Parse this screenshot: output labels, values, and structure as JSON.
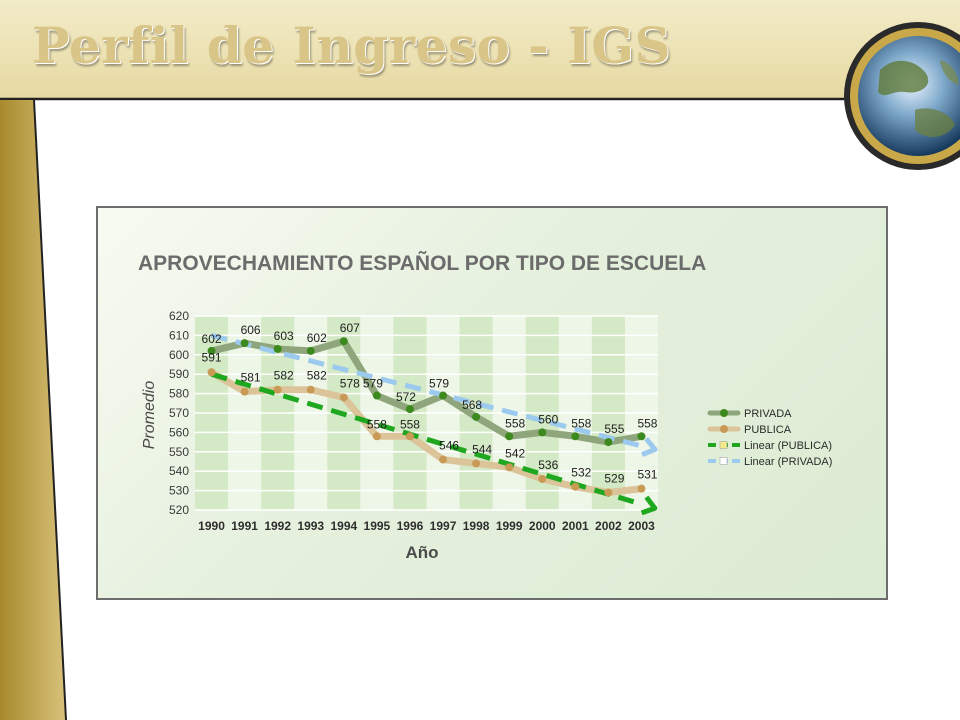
{
  "slide": {
    "title": "Perfil de Ingreso - IGS",
    "colors": {
      "title": "#d9c587",
      "band": "#ede3b6",
      "accent": "#c8a63a"
    }
  },
  "chart_data": {
    "type": "line",
    "title": "APROVECHAMIENTO ESPAÑOL POR TIPO DE ESCUELA",
    "xlabel": "Año",
    "ylabel": "Promedio",
    "x": [
      "1990",
      "1991",
      "1992",
      "1993",
      "1994",
      "1995",
      "1996",
      "1997",
      "1998",
      "1999",
      "2000",
      "2001",
      "2002",
      "2003"
    ],
    "ylim": [
      520,
      620
    ],
    "yticks": [
      "520",
      "530",
      "540",
      "550",
      "560",
      "570",
      "580",
      "590",
      "600",
      "610",
      "620"
    ],
    "grid": true,
    "legend_position": "right",
    "series": [
      {
        "name": "PRIVADA",
        "values": [
          602,
          606,
          603,
          602,
          607,
          579,
          572,
          579,
          568,
          558,
          560,
          558,
          555,
          558
        ],
        "color": "#3c8a1e",
        "line_color": "#8fa67c"
      },
      {
        "name": "PUBLICA",
        "values": [
          591,
          581,
          582,
          582,
          578,
          558,
          558,
          546,
          544,
          542,
          536,
          532,
          529,
          531
        ],
        "color": "#c89a55",
        "line_color": "#dcc49a"
      }
    ],
    "trendlines": [
      {
        "name": "Linear (PUBLICA)",
        "of": "PUBLICA",
        "start": 590,
        "end": 523,
        "color": "#1fa81f"
      },
      {
        "name": "Linear (PRIVADA)",
        "of": "PRIVADA",
        "start": 610,
        "end": 553,
        "color": "#9cc9ee"
      }
    ]
  }
}
